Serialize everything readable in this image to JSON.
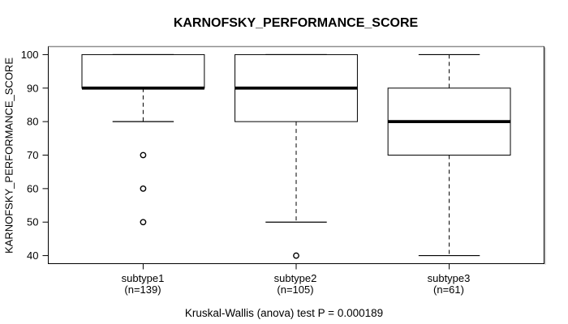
{
  "chart_data": {
    "type": "boxplot",
    "title": "KARNOFSKY_PERFORMANCE_SCORE",
    "ylabel": "KARNOFSKY_PERFORMANCE_SCORE",
    "xlabel": "",
    "ylim": [
      40,
      100
    ],
    "yticks": [
      40,
      50,
      60,
      70,
      80,
      90,
      100
    ],
    "grid": false,
    "legend": null,
    "caption": "Kruskal-Wallis (anova) test P = 0.000189",
    "colors": {
      "line": "#000000",
      "median": "#000000",
      "box_fill": "#ffffff",
      "background": "#ffffff",
      "frame_shadow_top": "#8f8f8f",
      "frame_shadow_right": "#a8a8a8"
    },
    "groups": [
      {
        "label": "subtype1",
        "sublabel": "(n=139)",
        "n": 139,
        "q1": 90,
        "median": 90,
        "q3": 100,
        "whisker_low": 80,
        "whisker_high": 100,
        "outliers": [
          70,
          60,
          50
        ]
      },
      {
        "label": "subtype2",
        "sublabel": "(n=105)",
        "n": 105,
        "q1": 80,
        "median": 90,
        "q3": 100,
        "whisker_low": 50,
        "whisker_high": 100,
        "outliers": [
          40
        ]
      },
      {
        "label": "subtype3",
        "sublabel": "(n=61)",
        "n": 61,
        "q1": 70,
        "median": 80,
        "q3": 90,
        "whisker_low": 40,
        "whisker_high": 100,
        "outliers": []
      }
    ]
  }
}
